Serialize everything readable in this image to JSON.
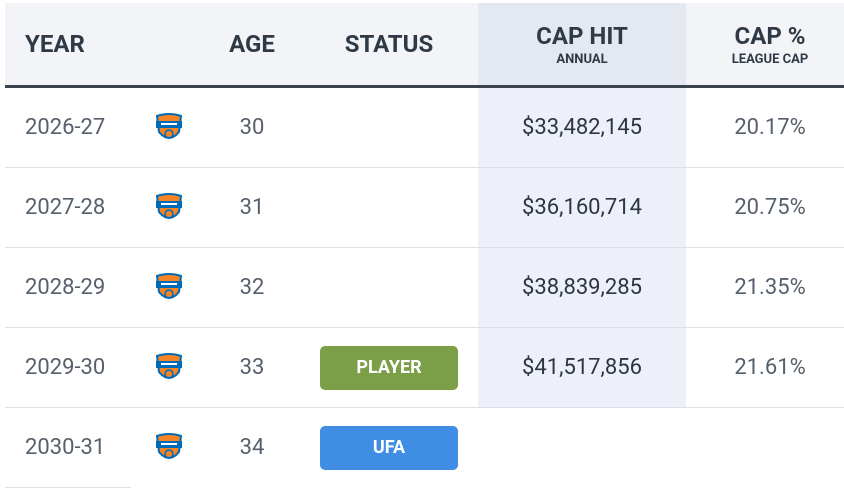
{
  "table": {
    "header": {
      "year": "YEAR",
      "age": "AGE",
      "status": "STATUS",
      "cap_hit": "CAP HIT",
      "cap_hit_sub": "ANNUAL",
      "cap_pct": "CAP %",
      "cap_pct_sub": "LEAGUE CAP"
    },
    "rows": [
      {
        "year": "2026-27",
        "age": 30,
        "cap_hit": "$33,482,145",
        "cap_pct": "20.17%"
      },
      {
        "year": "2027-28",
        "age": 31,
        "cap_hit": "$36,160,714",
        "cap_pct": "20.75%"
      },
      {
        "year": "2028-29",
        "age": 32,
        "cap_hit": "$38,839,285",
        "cap_pct": "21.35%"
      },
      {
        "year": "2029-30",
        "age": 33,
        "status": {
          "label": "PLAYER",
          "color": "#7b9f46"
        },
        "cap_hit": "$41,517,856",
        "cap_pct": "21.61%"
      },
      {
        "year": "2030-31",
        "age": 34,
        "status": {
          "label": "UFA",
          "color": "#3f8ee4"
        }
      }
    ]
  }
}
